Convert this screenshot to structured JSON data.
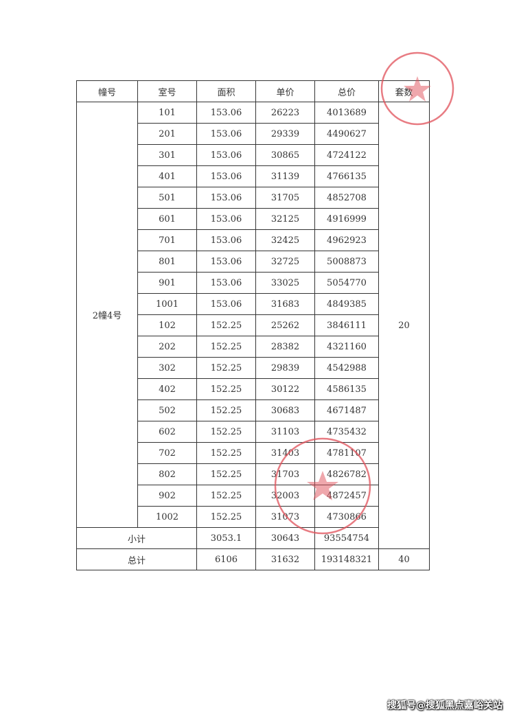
{
  "header": {
    "building": "幢号",
    "room": "室号",
    "area": "面积",
    "unit_price": "单价",
    "total_price": "总价",
    "count": "套数"
  },
  "building_name": "2幢4号",
  "building_count": "20",
  "rows": [
    [
      "101",
      "153.06",
      "26223",
      "4013689"
    ],
    [
      "201",
      "153.06",
      "29339",
      "4490627"
    ],
    [
      "301",
      "153.06",
      "30865",
      "4724122"
    ],
    [
      "401",
      "153.06",
      "31139",
      "4766135"
    ],
    [
      "501",
      "153.06",
      "31705",
      "4852708"
    ],
    [
      "601",
      "153.06",
      "32125",
      "4916999"
    ],
    [
      "701",
      "153.06",
      "32425",
      "4962923"
    ],
    [
      "801",
      "153.06",
      "32725",
      "5008873"
    ],
    [
      "901",
      "153.06",
      "33025",
      "5054770"
    ],
    [
      "1001",
      "153.06",
      "31683",
      "4849385"
    ],
    [
      "102",
      "152.25",
      "25262",
      "3846111"
    ],
    [
      "202",
      "152.25",
      "28382",
      "4321160"
    ],
    [
      "302",
      "152.25",
      "29839",
      "4542988"
    ],
    [
      "402",
      "152.25",
      "30122",
      "4586135"
    ],
    [
      "502",
      "152.25",
      "30683",
      "4671487"
    ],
    [
      "602",
      "152.25",
      "31103",
      "4735432"
    ],
    [
      "702",
      "152.25",
      "31403",
      "4781107"
    ],
    [
      "802",
      "152.25",
      "31703",
      "4826782"
    ],
    [
      "902",
      "152.25",
      "32003",
      "4872457"
    ],
    [
      "1002",
      "152.25",
      "31073",
      "4730866"
    ]
  ],
  "subtotal": {
    "label": "小计",
    "area": "3053.1",
    "unit_price": "30643",
    "total_price": "93554754"
  },
  "total": {
    "label": "总计",
    "area": "6106",
    "unit_price": "31632",
    "total_price": "193148321",
    "count": "40"
  },
  "watermark": "搜狐号@搜狐黑点嘉峪关站",
  "stamp_color": "#e0505a"
}
